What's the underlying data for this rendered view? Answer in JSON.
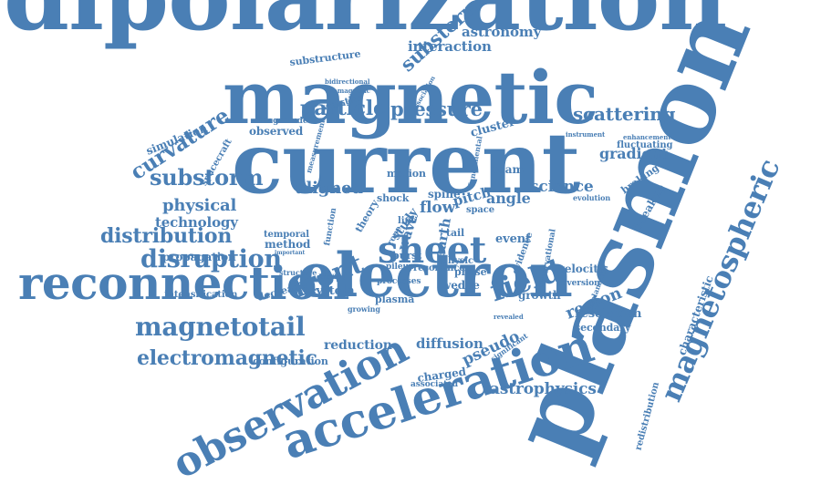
{
  "color": "#4a7fb5",
  "words": [
    {
      "name": "word-dipolarization",
      "text": "dipolarization"
    },
    {
      "name": "word-plasmon",
      "text": "plasmon"
    },
    {
      "name": "word-magnetic",
      "text": "magnetic"
    },
    {
      "name": "word-current",
      "text": "current"
    },
    {
      "name": "word-electron",
      "text": "electron"
    },
    {
      "name": "word-reconnection",
      "text": "reconnection"
    },
    {
      "name": "word-acceleration",
      "text": "acceleration"
    },
    {
      "name": "word-observation",
      "text": "observation"
    },
    {
      "name": "word-magnetospheric",
      "text": "magnetospheric"
    },
    {
      "name": "word-magnetotail",
      "text": "magnetotail"
    },
    {
      "name": "word-electromagnetic",
      "text": "electromagnetic"
    },
    {
      "name": "word-sheet",
      "text": "sheet"
    },
    {
      "name": "word-field",
      "text": "field"
    },
    {
      "name": "word-front",
      "text": "front"
    },
    {
      "name": "word-substorm",
      "text": "substorm"
    },
    {
      "name": "word-distribution",
      "text": "distribution"
    },
    {
      "name": "word-disruption",
      "text": "disruption"
    },
    {
      "name": "word-curvature",
      "text": "curvature"
    },
    {
      "name": "word-particle",
      "text": "particle"
    },
    {
      "name": "word-pressure",
      "text": "pressure"
    },
    {
      "name": "word-scattering",
      "text": "scattering"
    },
    {
      "name": "word-substorms",
      "text": "substorms"
    },
    {
      "name": "word-astronomy",
      "text": "astronomy"
    },
    {
      "name": "word-interaction",
      "text": "interaction"
    },
    {
      "name": "word-substructure",
      "text": "substructure"
    },
    {
      "name": "word-physical",
      "text": "physical"
    },
    {
      "name": "word-technology",
      "text": "technology"
    },
    {
      "name": "word-propagation",
      "text": "propagation"
    },
    {
      "name": "word-aligned",
      "text": "aligned"
    },
    {
      "name": "word-science",
      "text": "science"
    },
    {
      "name": "word-region",
      "text": "region"
    },
    {
      "name": "word-astrophysics",
      "text": "astrophysics"
    },
    {
      "name": "word-pseudo",
      "text": "pseudo"
    },
    {
      "name": "word-diffusion",
      "text": "diffusion"
    },
    {
      "name": "word-reduction",
      "text": "reduction"
    },
    {
      "name": "word-gradient",
      "text": "gradient"
    },
    {
      "name": "word-fluctuating",
      "text": "fluctuating"
    },
    {
      "name": "word-breakup",
      "text": "breakup"
    },
    {
      "name": "word-braking",
      "text": "braking"
    },
    {
      "name": "word-characteristic",
      "text": "characteristic"
    },
    {
      "name": "word-redistribution",
      "text": "redistribution"
    },
    {
      "name": "word-simulation",
      "text": "simulation"
    },
    {
      "name": "word-spacecraft",
      "text": "spacecraft"
    },
    {
      "name": "word-intensification",
      "text": "intensification"
    },
    {
      "name": "word-configuration",
      "text": "configuration"
    },
    {
      "name": "word-decrease",
      "text": "decrease"
    },
    {
      "name": "word-system",
      "text": "system"
    },
    {
      "name": "word-plasma",
      "text": "plasma"
    },
    {
      "name": "word-growth",
      "text": "growth"
    },
    {
      "name": "word-velocity",
      "text": "velocity"
    },
    {
      "name": "word-diversion",
      "text": "diversion"
    },
    {
      "name": "word-resolution",
      "text": "resolution"
    },
    {
      "name": "word-secondary",
      "text": "secondary"
    },
    {
      "name": "word-event",
      "text": "event"
    },
    {
      "name": "word-physic",
      "text": "physic"
    },
    {
      "name": "word-phase",
      "text": "phase"
    },
    {
      "name": "word-wedge",
      "text": "wedge"
    },
    {
      "name": "word-resonance",
      "text": "resonance"
    },
    {
      "name": "word-processes",
      "text": "processes"
    },
    {
      "name": "word-charged",
      "text": "charged"
    },
    {
      "name": "word-associated",
      "text": "associated"
    },
    {
      "name": "word-significant",
      "text": "significant"
    },
    {
      "name": "word-method",
      "text": "method"
    },
    {
      "name": "word-temporal",
      "text": "temporal"
    },
    {
      "name": "word-structure",
      "text": "structure"
    },
    {
      "name": "word-detailed",
      "text": "detailed"
    },
    {
      "name": "word-cluster",
      "text": "cluster"
    },
    {
      "name": "word-beam",
      "text": "beam"
    },
    {
      "name": "word-flow",
      "text": "flow"
    },
    {
      "name": "word-pitch",
      "text": "pitch"
    },
    {
      "name": "word-angle",
      "text": "angle"
    },
    {
      "name": "word-space",
      "text": "space"
    },
    {
      "name": "word-spine",
      "text": "spine"
    },
    {
      "name": "word-wave",
      "text": "wave"
    },
    {
      "name": "word-earth",
      "text": "earth"
    },
    {
      "name": "word-motion",
      "text": "motion"
    },
    {
      "name": "word-shock",
      "text": "shock"
    },
    {
      "name": "word-observed",
      "text": "observed"
    },
    {
      "name": "word-magnitude",
      "text": "magnitude"
    },
    {
      "name": "word-whistler",
      "text": "whistler"
    },
    {
      "name": "word-bidirectional",
      "text": "bidirectional"
    },
    {
      "name": "word-diamagnetic",
      "text": "diamagnetic"
    },
    {
      "name": "word-association",
      "text": "association"
    },
    {
      "name": "word-evidence",
      "text": "evidence"
    },
    {
      "name": "word-observational",
      "text": "observational"
    },
    {
      "name": "word-explanation",
      "text": "explanation"
    },
    {
      "name": "word-enhancement",
      "text": "enhancement"
    },
    {
      "name": "word-evolution",
      "text": "evolution"
    },
    {
      "name": "word-instrument",
      "text": "instrument"
    },
    {
      "name": "word-fundamental",
      "text": "fundamental"
    },
    {
      "name": "word-measurement",
      "text": "measurement"
    },
    {
      "name": "word-study",
      "text": "study"
    },
    {
      "name": "word-theory",
      "text": "theory"
    },
    {
      "name": "word-burst",
      "text": "burst"
    },
    {
      "name": "word-tail",
      "text": "tail"
    },
    {
      "name": "word-line",
      "text": "line"
    },
    {
      "name": "word-rope",
      "text": "rope"
    },
    {
      "name": "word-function",
      "text": "function"
    },
    {
      "name": "word-revealed",
      "text": "revealed"
    },
    {
      "name": "word-growing",
      "text": "growing"
    },
    {
      "name": "word-important",
      "text": "important"
    },
    {
      "name": "word-pileup",
      "text": "pileup"
    }
  ]
}
